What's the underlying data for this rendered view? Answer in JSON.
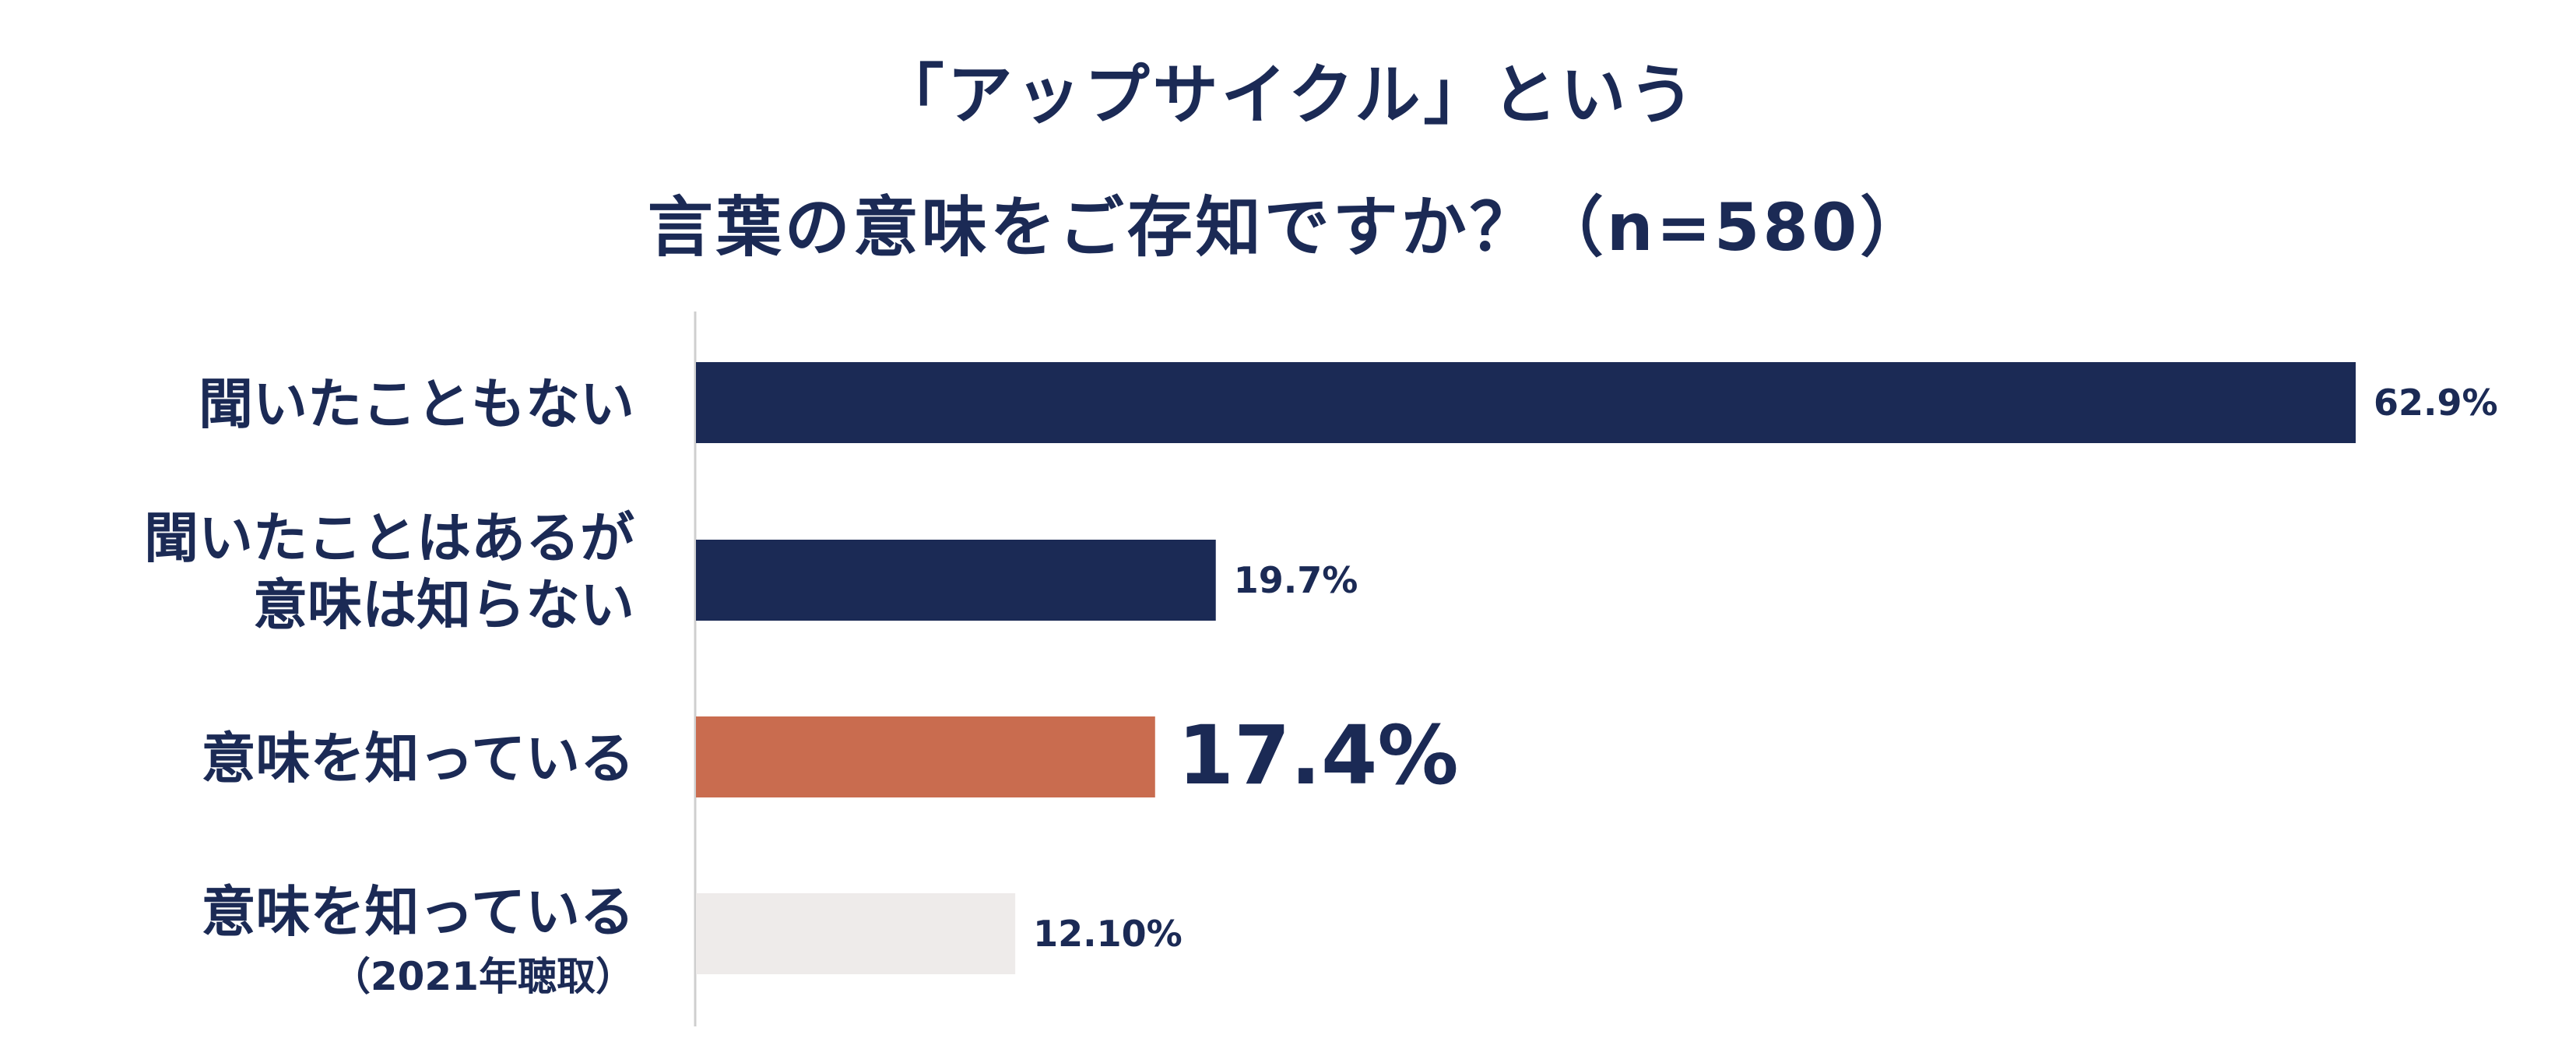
{
  "chart_data": {
    "type": "bar",
    "orientation": "horizontal",
    "title": [
      "「アップサイクル」という",
      "言葉の意味をご存知ですか？（n=580）"
    ],
    "categories": [
      [
        "聞いたこともない"
      ],
      [
        "聞いたことはあるが",
        "意味は知らない"
      ],
      [
        "意味を知っている"
      ],
      [
        "意味を知っている",
        "（2021年聴取）"
      ]
    ],
    "values": [
      62.9,
      19.7,
      17.4,
      12.1
    ],
    "value_labels": [
      "62.9%",
      "19.7%",
      "17.4%",
      "12.10%"
    ],
    "xlim": [
      0,
      62.9
    ],
    "grid": false,
    "legend": "none",
    "colors": [
      "#1b2a55",
      "#1b2a55",
      "#c96c4f",
      "#eeebea"
    ],
    "highlight_index": 2,
    "axis_color": "#cfcfcf"
  }
}
